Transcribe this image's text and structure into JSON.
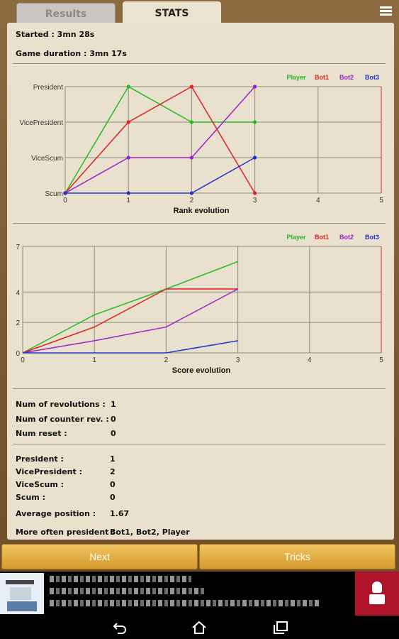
{
  "tabs": {
    "results": "Results",
    "stats": "STATS"
  },
  "icons": {
    "menu": "menu-icon",
    "back": "back-icon",
    "home": "home-icon",
    "recent": "recent-apps-icon",
    "ad_person": "person-icon"
  },
  "info": {
    "started": "Started : 3mn 28s",
    "duration": "Game duration : 3mn 17s"
  },
  "legend": [
    "Player",
    "Bot1",
    "Bot2",
    "Bot3"
  ],
  "colors": {
    "Player": "#22bb22",
    "Bot1": "#dd2222",
    "Bot2": "#9922cc",
    "Bot3": "#2233cc",
    "button": "#e3ae45"
  },
  "chart_data": [
    {
      "type": "line",
      "xlabel": "Rank evolution",
      "ylabel": "",
      "y_categories": [
        "Scum",
        "ViceScum",
        "VicePresident",
        "President"
      ],
      "x_ticks": [
        0,
        1,
        2,
        3,
        4,
        5
      ],
      "xlim": [
        0,
        5
      ],
      "ylim": [
        0,
        3
      ],
      "grid": true,
      "legend_position": "top-right",
      "series": [
        {
          "name": "Player",
          "x": [
            0,
            1,
            2,
            3
          ],
          "values": [
            0,
            3,
            2,
            2
          ]
        },
        {
          "name": "Bot1",
          "x": [
            0,
            1,
            2,
            3
          ],
          "values": [
            0,
            2,
            3,
            0
          ]
        },
        {
          "name": "Bot2",
          "x": [
            0,
            1,
            2,
            3
          ],
          "values": [
            0,
            1,
            1,
            3
          ]
        },
        {
          "name": "Bot3",
          "x": [
            0,
            1,
            2,
            3
          ],
          "values": [
            0,
            0,
            0,
            1
          ]
        }
      ],
      "markers": true,
      "vertical_marker_x": 5
    },
    {
      "type": "line",
      "xlabel": "Score evolution",
      "ylabel": "",
      "y_ticks": [
        0,
        2,
        4,
        7
      ],
      "x_ticks": [
        0,
        1,
        2,
        3,
        4,
        5
      ],
      "xlim": [
        0,
        5
      ],
      "ylim": [
        0,
        7
      ],
      "grid": true,
      "legend_position": "top-right",
      "series": [
        {
          "name": "Player",
          "x": [
            0,
            1,
            2,
            3
          ],
          "values": [
            0,
            2.5,
            4.2,
            6
          ]
        },
        {
          "name": "Bot1",
          "x": [
            0,
            1,
            2,
            3
          ],
          "values": [
            0,
            1.7,
            4.2,
            4.2
          ]
        },
        {
          "name": "Bot2",
          "x": [
            0,
            1,
            2,
            3
          ],
          "values": [
            0,
            0.8,
            1.7,
            4.2
          ]
        },
        {
          "name": "Bot3",
          "x": [
            0,
            1,
            2,
            3
          ],
          "values": [
            0,
            0,
            0,
            0.8
          ]
        }
      ],
      "markers": false,
      "vertical_marker_x": 5
    }
  ],
  "revolutions": [
    {
      "label": "Num of revolutions :",
      "value": "1"
    },
    {
      "label": "Num of counter rev. :",
      "value": "0"
    },
    {
      "label": "Num reset :",
      "value": "0"
    }
  ],
  "positions": [
    {
      "label": "President :",
      "value": "1"
    },
    {
      "label": "VicePresident :",
      "value": "2"
    },
    {
      "label": "ViceScum :",
      "value": "0"
    },
    {
      "label": "Scum :",
      "value": "0"
    },
    {
      "label": "Average position :",
      "value": "1.67"
    },
    {
      "label": "More often president :",
      "value": "Bot1, Bot2, Player"
    }
  ],
  "buttons": {
    "next": "Next",
    "tricks": "Tricks"
  }
}
